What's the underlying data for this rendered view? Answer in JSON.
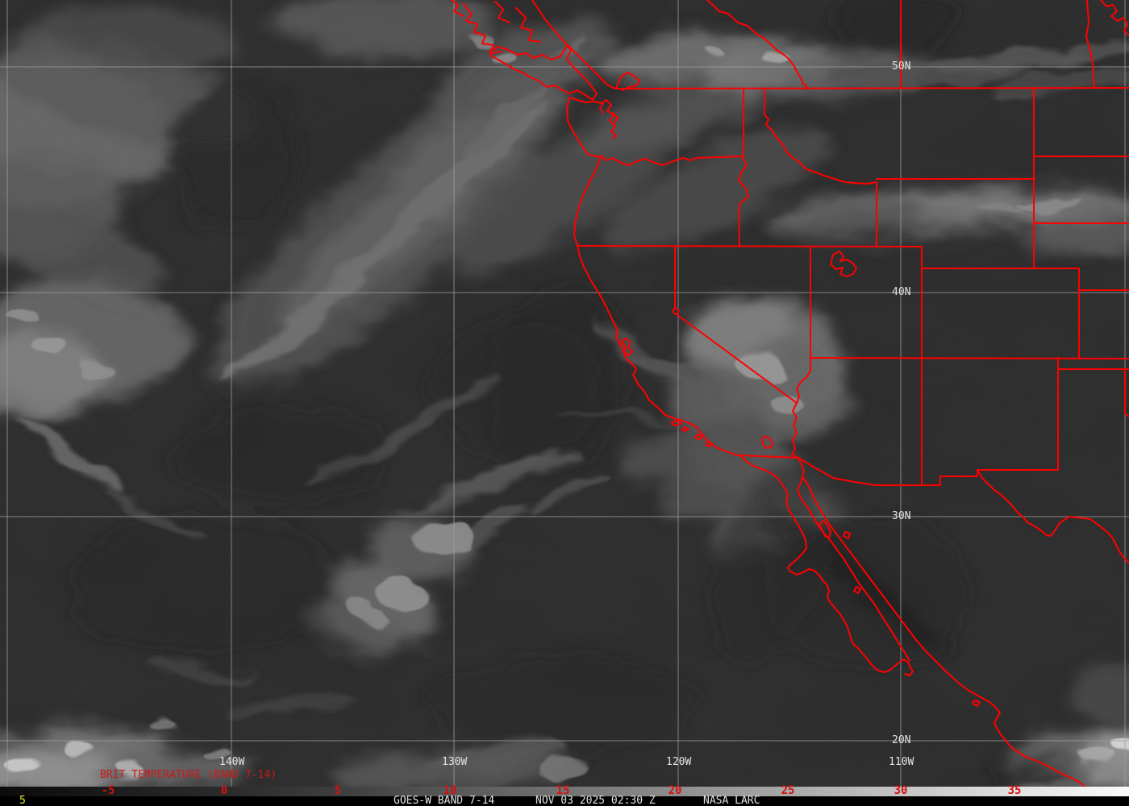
{
  "image_labels": {
    "lat": [
      "50N",
      "40N",
      "30N",
      "20N"
    ],
    "lon": [
      "140W",
      "130W",
      "120W",
      "110W"
    ]
  },
  "caption": "BRIT TEMPERATURE (BAND 7-14)",
  "colorbar": {
    "ticks": [
      "-5",
      "0",
      "5",
      "10",
      "15",
      "20",
      "25",
      "30",
      "35"
    ]
  },
  "status_bar": {
    "frame_number": "5",
    "product": "GOES-W BAND 7-14",
    "datetime": "NOV 03 2025 02:30 Z",
    "source": "NASA LARC"
  },
  "colors": {
    "overlay_red": "#ff0000",
    "caption_red": "#cc1a1a",
    "tick_red": "#d41111",
    "frame_yellow": "#e8e838",
    "label_white": "#e4e4e4",
    "grid_gray": "#9d9d9d",
    "ocean_gray": "#262626"
  }
}
